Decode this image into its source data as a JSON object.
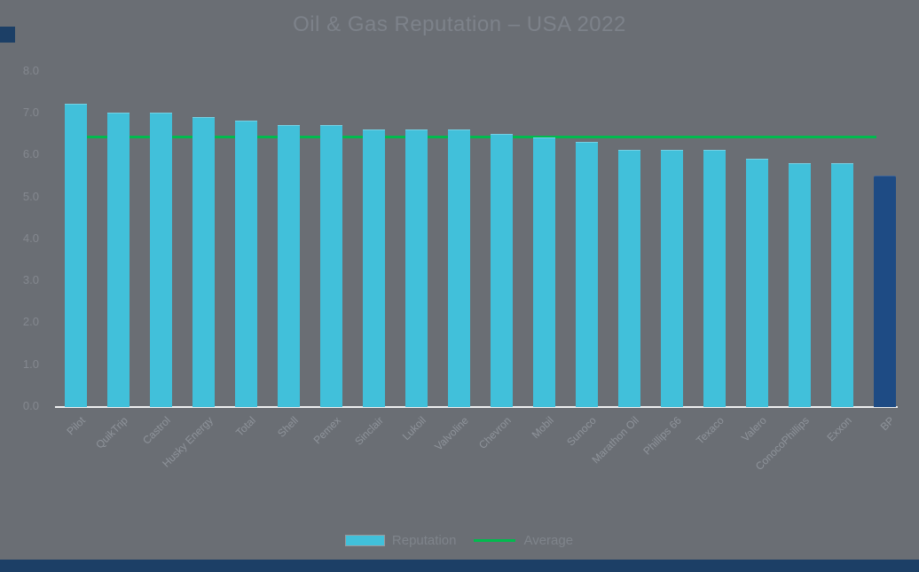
{
  "title": "Oil & Gas Reputation – USA 2022",
  "legend": {
    "bar_label": "Reputation",
    "line_label": "Average"
  },
  "colors": {
    "background": "#6a6e74",
    "bar": "#41c0da",
    "highlight_bar": "#1e4b84",
    "average_line": "#00bb4e",
    "axis_line": "#eef0f1",
    "decor": "#1c3f66"
  },
  "y_axis": {
    "ticks": [
      "8.0",
      "7.0",
      "6.0",
      "5.0",
      "4.0",
      "3.0",
      "2.0",
      "1.0",
      "0.0"
    ],
    "min": 0.0,
    "max": 8.0
  },
  "chart_data": {
    "type": "bar",
    "title": "Oil & Gas Reputation – USA 2022",
    "categories": [
      "Pilot",
      "QuikTrip",
      "Castrol",
      "Husky Energy",
      "Total",
      "Shell",
      "Pemex",
      "Sinclair",
      "Lukoil",
      "Valvoline",
      "Chevron",
      "Mobil",
      "Sunoco",
      "Marathon Oil",
      "Phillips 66",
      "Texaco",
      "Valero",
      "ConocoPhillips",
      "Exxon",
      "BP"
    ],
    "series": [
      {
        "name": "Reputation",
        "values": [
          7.2,
          7.0,
          7.0,
          6.9,
          6.8,
          6.7,
          6.7,
          6.6,
          6.6,
          6.6,
          6.5,
          6.4,
          6.3,
          6.1,
          6.1,
          6.1,
          5.9,
          5.8,
          5.8,
          5.5
        ]
      }
    ],
    "average_line": {
      "name": "Average",
      "value": 6.4
    },
    "highlight_index": 19,
    "xlabel": "",
    "ylabel": "",
    "ylim": [
      0,
      8
    ],
    "grid": false,
    "legend_position": "bottom",
    "x_label_rotation_deg": 45
  }
}
